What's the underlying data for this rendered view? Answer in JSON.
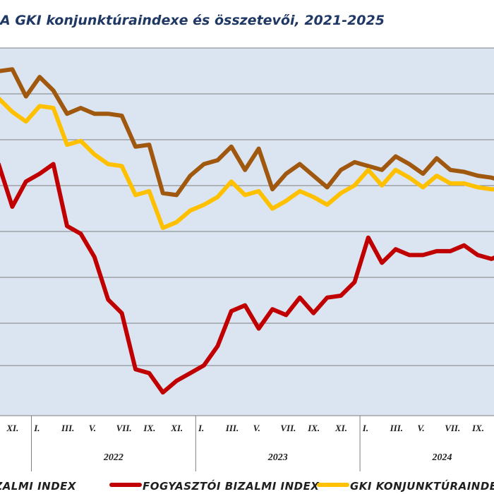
{
  "title": "A GKI konjunktúraindexe és összetevői, 2021-2025",
  "chart_data": {
    "type": "line",
    "months": [
      "2021-10",
      "2021-11",
      "2021-12",
      "2022-01",
      "2022-02",
      "2022-03",
      "2022-04",
      "2022-05",
      "2022-06",
      "2022-07",
      "2022-08",
      "2022-09",
      "2022-10",
      "2022-11",
      "2022-12",
      "2023-01",
      "2023-02",
      "2023-03",
      "2023-04",
      "2023-05",
      "2023-06",
      "2023-07",
      "2023-08",
      "2023-09",
      "2023-10",
      "2023-11",
      "2023-12",
      "2024-01",
      "2024-02",
      "2024-03",
      "2024-04",
      "2024-05",
      "2024-06",
      "2024-07",
      "2024-08",
      "2024-09",
      "2024-10",
      "2024-11",
      "2024-12"
    ],
    "x_tick_labels": [
      "XI.",
      "I.",
      "III.",
      "V.",
      "VII.",
      "IX.",
      "XI.",
      "I.",
      "III.",
      "V.",
      "VII.",
      "IX.",
      "XI.",
      "I.",
      "III.",
      "V.",
      "VII.",
      "IX."
    ],
    "x_tick_months": [
      "2021-11",
      "2022-01",
      "2022-03",
      "2022-05",
      "2022-07",
      "2022-09",
      "2022-11",
      "2023-01",
      "2023-03",
      "2023-05",
      "2023-07",
      "2023-09",
      "2023-11",
      "2024-01",
      "2024-03",
      "2024-05",
      "2024-07",
      "2024-09"
    ],
    "year_labels": [
      "2022",
      "2023",
      "2024"
    ],
    "series": [
      {
        "name": "Üzleti bizalmi index",
        "color": "#a0580e",
        "values": [
          4.0,
          4.5,
          -2.5,
          2.5,
          -1.0,
          -7.0,
          -5.5,
          -7.0,
          -7.0,
          -7.5,
          -15.5,
          -15.0,
          -27.5,
          -28.0,
          -23.0,
          -20.0,
          -19.0,
          -15.5,
          -21.5,
          -16.0,
          -26.5,
          -22.5,
          -20.0,
          -23.0,
          -26.0,
          -21.5,
          -19.5,
          -20.5,
          -21.5,
          -18.0,
          -20.0,
          -22.5,
          -18.5,
          -21.5,
          -22.0,
          -23.0,
          -23.5,
          -24.5,
          -25.0
        ]
      },
      {
        "name": "Fogyasztói bizalmi index",
        "color": "#c00000",
        "values": [
          -20.0,
          -31.0,
          -24.5,
          -22.5,
          -20.0,
          -36.0,
          -38.0,
          -44.0,
          -55.0,
          -58.5,
          -73.0,
          -74.0,
          -79.0,
          -76.0,
          -74.0,
          -72.0,
          -67.0,
          -58.0,
          -56.5,
          -62.5,
          -57.5,
          -59.0,
          -54.5,
          -58.5,
          -54.5,
          -54.0,
          -50.5,
          -39.0,
          -45.5,
          -42.0,
          -43.5,
          -43.5,
          -42.5,
          -42.5,
          -41.0,
          -43.5,
          -44.5,
          -43.0,
          -44.0
        ]
      },
      {
        "name": "GKI konjunktúraindex",
        "color": "#ffc000",
        "values": [
          -3.0,
          -6.5,
          -9.0,
          -5.0,
          -5.5,
          -15.0,
          -14.0,
          -17.5,
          -20.0,
          -20.5,
          -28.0,
          -27.0,
          -36.5,
          -35.0,
          -32.0,
          -30.5,
          -28.5,
          -24.5,
          -28.0,
          -27.0,
          -31.5,
          -29.5,
          -27.0,
          -28.5,
          -30.5,
          -27.5,
          -25.5,
          -21.5,
          -25.5,
          -21.5,
          -23.5,
          -26.0,
          -23.0,
          -25.0,
          -25.0,
          -26.0,
          -26.5,
          -26.5,
          -27.0
        ]
      }
    ],
    "ylim": [
      -85,
      10
    ],
    "grid": true,
    "legend_position": "bottom"
  }
}
